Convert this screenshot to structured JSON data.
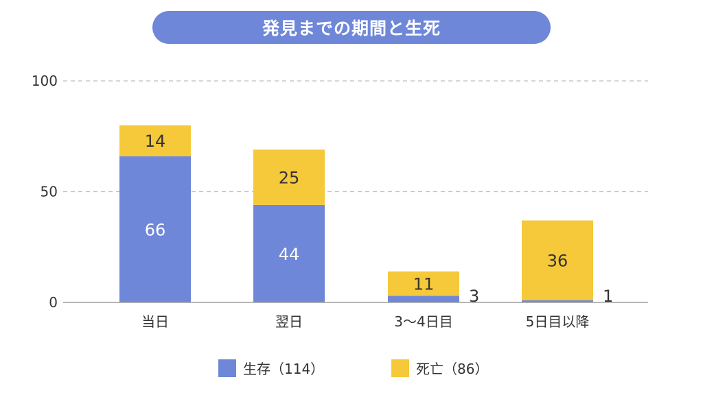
{
  "chart_data": {
    "type": "bar",
    "stacked": true,
    "title": "発見までの期間と生死",
    "categories": [
      "当日",
      "翌日",
      "3〜4日目",
      "5日目以降"
    ],
    "series": [
      {
        "name": "生存（114）",
        "values": [
          66,
          44,
          3,
          1
        ],
        "color": "#6f87d8"
      },
      {
        "name": "死亡（86）",
        "values": [
          14,
          25,
          11,
          36
        ],
        "color": "#f5c93a"
      }
    ],
    "yticks": [
      "0",
      "50",
      "100"
    ],
    "ylim": [
      0,
      100
    ],
    "grid": true,
    "legend_position": "bottom"
  }
}
